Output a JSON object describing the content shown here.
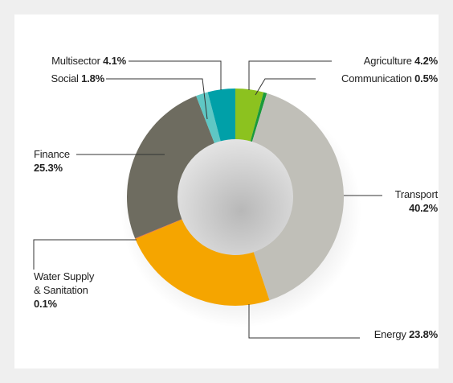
{
  "chart_data": {
    "type": "donut",
    "categories": [
      "Agriculture",
      "Communication",
      "Transport",
      "Energy",
      "Water Supply & Sanitation",
      "Finance",
      "Social",
      "Multisector"
    ],
    "values": [
      4.2,
      0.5,
      40.2,
      23.8,
      0.1,
      25.3,
      1.8,
      4.1
    ],
    "value_labels": [
      "4.2%",
      "0.5%",
      "40.2%",
      "23.8%",
      "0.1%",
      "25.3%",
      "1.8%",
      "4.1%"
    ],
    "colors": [
      "#8cc21f",
      "#1a9a3a",
      "#c0bfb8",
      "#f5a500",
      "#e8643a",
      "#6e6c60",
      "#5fc7c4",
      "#00a0a8"
    ]
  }
}
